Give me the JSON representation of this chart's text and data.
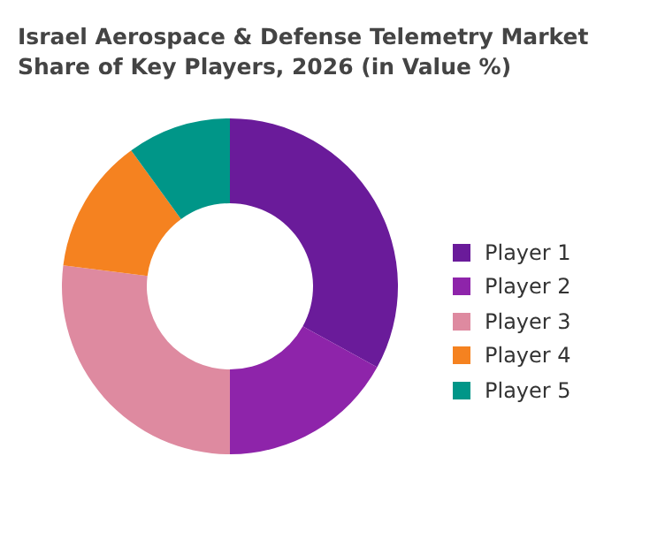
{
  "chart_data": {
    "type": "donut",
    "title": "Israel Aerospace & Defense Telemetry Market Share of Key Players, 2026 (in Value %)",
    "categories": [
      "Player 1",
      "Player 2",
      "Player 3",
      "Player 4",
      "Player 5"
    ],
    "values": [
      33,
      17,
      27,
      13,
      10
    ],
    "colors": [
      "#6a1b9a",
      "#8e24aa",
      "#de8aa0",
      "#f58220",
      "#009688"
    ],
    "legend": "right"
  }
}
